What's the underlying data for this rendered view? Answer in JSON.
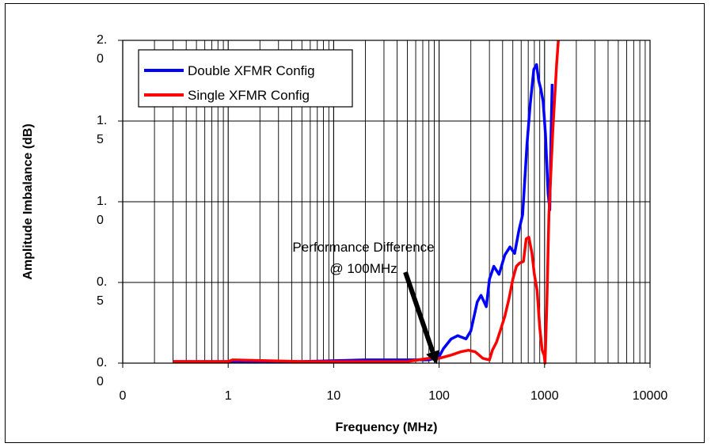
{
  "chart_data": {
    "type": "line",
    "xscale": "log",
    "xlabel": "Frequency (MHz)",
    "ylabel": "Amplitude Imbalance (dB)",
    "xlim": [
      0.1,
      10000
    ],
    "ylim": [
      0,
      2.0
    ],
    "x_tick_labels": [
      "0",
      "1",
      "10",
      "100",
      "1000",
      "10000"
    ],
    "y_tick_labels": [
      {
        "line1": "0.",
        "line2": "0"
      },
      {
        "line1": "0.",
        "line2": "5"
      },
      {
        "line1": "1.",
        "line2": "0"
      },
      {
        "line1": "1.",
        "line2": "5"
      },
      {
        "line1": "2.",
        "line2": "0"
      }
    ],
    "grid": true,
    "legend_position": "top-left",
    "series": [
      {
        "name": "Double XFMR Config",
        "color": "#0000ff",
        "points": [
          [
            0.3,
            0.01
          ],
          [
            1,
            0.01
          ],
          [
            5,
            0.01
          ],
          [
            20,
            0.02
          ],
          [
            50,
            0.02
          ],
          [
            80,
            0.02
          ],
          [
            100,
            0.04
          ],
          [
            110,
            0.09
          ],
          [
            130,
            0.15
          ],
          [
            150,
            0.17
          ],
          [
            180,
            0.15
          ],
          [
            200,
            0.2
          ],
          [
            230,
            0.38
          ],
          [
            250,
            0.42
          ],
          [
            280,
            0.35
          ],
          [
            300,
            0.52
          ],
          [
            330,
            0.6
          ],
          [
            370,
            0.55
          ],
          [
            420,
            0.67
          ],
          [
            470,
            0.72
          ],
          [
            520,
            0.68
          ],
          [
            570,
            0.82
          ],
          [
            620,
            0.92
          ],
          [
            680,
            1.35
          ],
          [
            730,
            1.6
          ],
          [
            790,
            1.82
          ],
          [
            840,
            1.85
          ],
          [
            880,
            1.75
          ],
          [
            920,
            1.7
          ],
          [
            970,
            1.62
          ],
          [
            1020,
            1.42
          ],
          [
            1080,
            1.05
          ],
          [
            1120,
            0.95
          ],
          [
            1150,
            1.4
          ],
          [
            1180,
            1.73
          ]
        ]
      },
      {
        "name": "Single XFMR Config",
        "color": "#ff0000",
        "points": [
          [
            0.3,
            0.01
          ],
          [
            1,
            0.01
          ],
          [
            1.1,
            0.02
          ],
          [
            5,
            0.01
          ],
          [
            20,
            0.01
          ],
          [
            50,
            0.01
          ],
          [
            80,
            0.03
          ],
          [
            100,
            0.03
          ],
          [
            130,
            0.05
          ],
          [
            160,
            0.07
          ],
          [
            190,
            0.08
          ],
          [
            220,
            0.07
          ],
          [
            260,
            0.03
          ],
          [
            300,
            0.02
          ],
          [
            320,
            0.08
          ],
          [
            350,
            0.13
          ],
          [
            380,
            0.2
          ],
          [
            420,
            0.29
          ],
          [
            460,
            0.4
          ],
          [
            500,
            0.52
          ],
          [
            540,
            0.6
          ],
          [
            580,
            0.62
          ],
          [
            630,
            0.63
          ],
          [
            670,
            0.77
          ],
          [
            710,
            0.78
          ],
          [
            760,
            0.68
          ],
          [
            800,
            0.55
          ],
          [
            850,
            0.45
          ],
          [
            900,
            0.22
          ],
          [
            950,
            0.08
          ],
          [
            990,
            0.05
          ],
          [
            1010,
            0.0
          ],
          [
            1050,
            0.35
          ],
          [
            1100,
            0.92
          ],
          [
            1200,
            1.45
          ],
          [
            1300,
            1.85
          ],
          [
            1350,
            2.0
          ]
        ]
      }
    ],
    "annotation": {
      "line1": "Performance Difference",
      "line2": "@ 100MHz",
      "arrow_target_x": 100,
      "arrow_target_y": 0.0
    }
  }
}
